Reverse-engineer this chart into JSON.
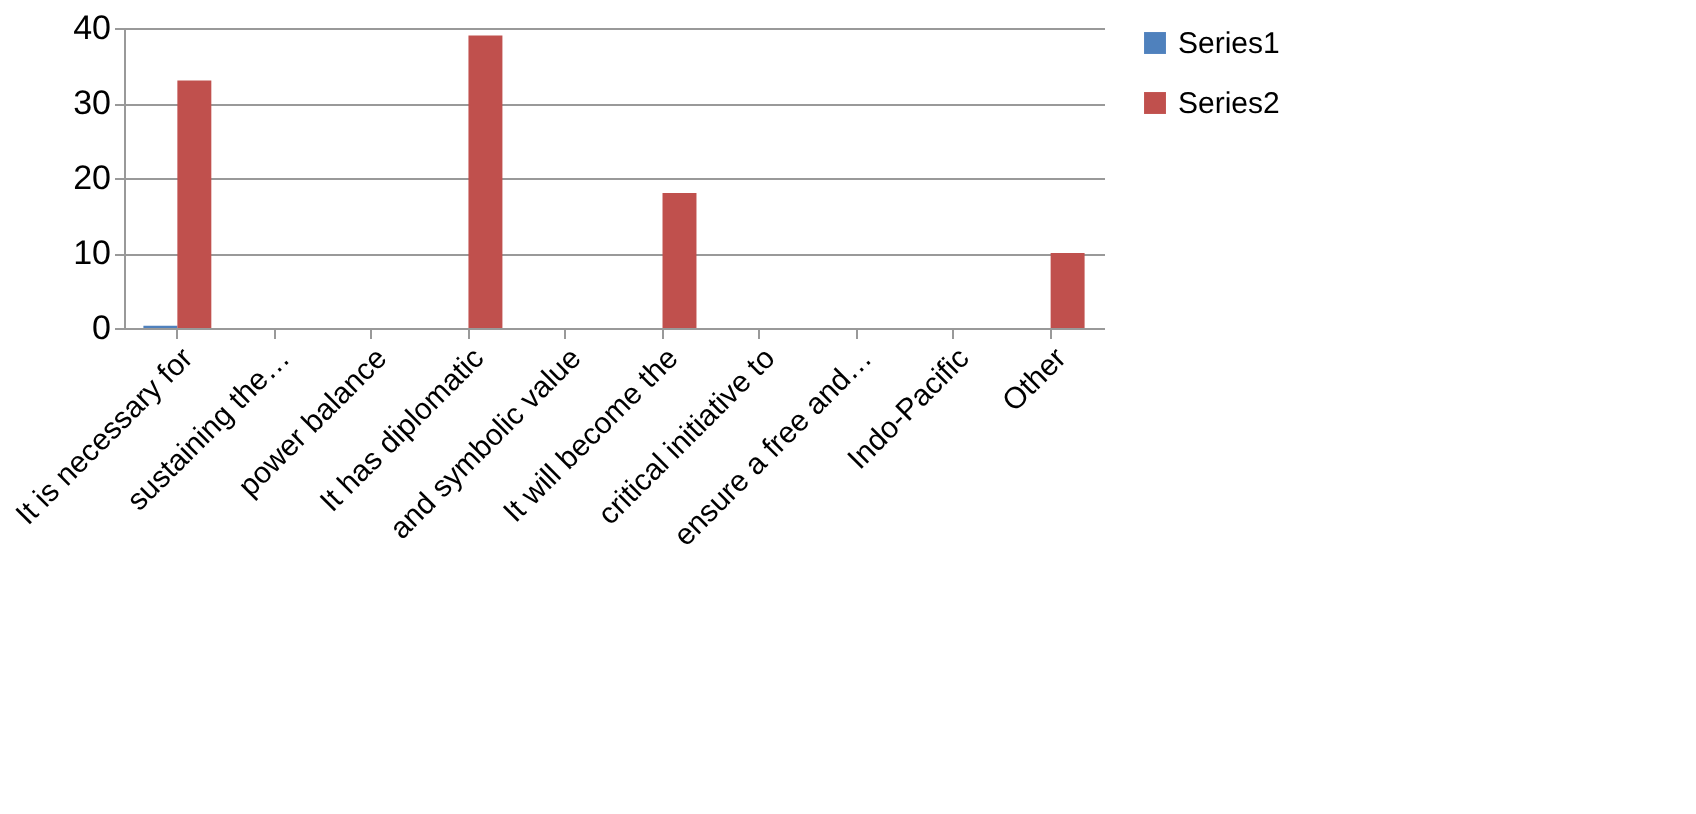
{
  "chart_data": {
    "type": "bar",
    "categories": [
      "It is necessary for",
      "sustaining the…",
      "power balance",
      "It has diplomatic",
      "and symbolic value",
      "It will become the",
      "critical initiative to",
      "ensure a free and…",
      "Indo-Pacific",
      "Other"
    ],
    "series": [
      {
        "name": "Series1",
        "color": "#4f81bd",
        "values": [
          0.3,
          null,
          null,
          null,
          null,
          null,
          null,
          null,
          null,
          null
        ]
      },
      {
        "name": "Series2",
        "color": "#c0504d",
        "values": [
          33,
          null,
          null,
          39,
          null,
          18,
          null,
          null,
          null,
          10
        ]
      }
    ],
    "ylim": [
      0,
      40
    ],
    "yticks": [
      0,
      10,
      20,
      30,
      40
    ],
    "grid": "y",
    "legend": "right"
  }
}
